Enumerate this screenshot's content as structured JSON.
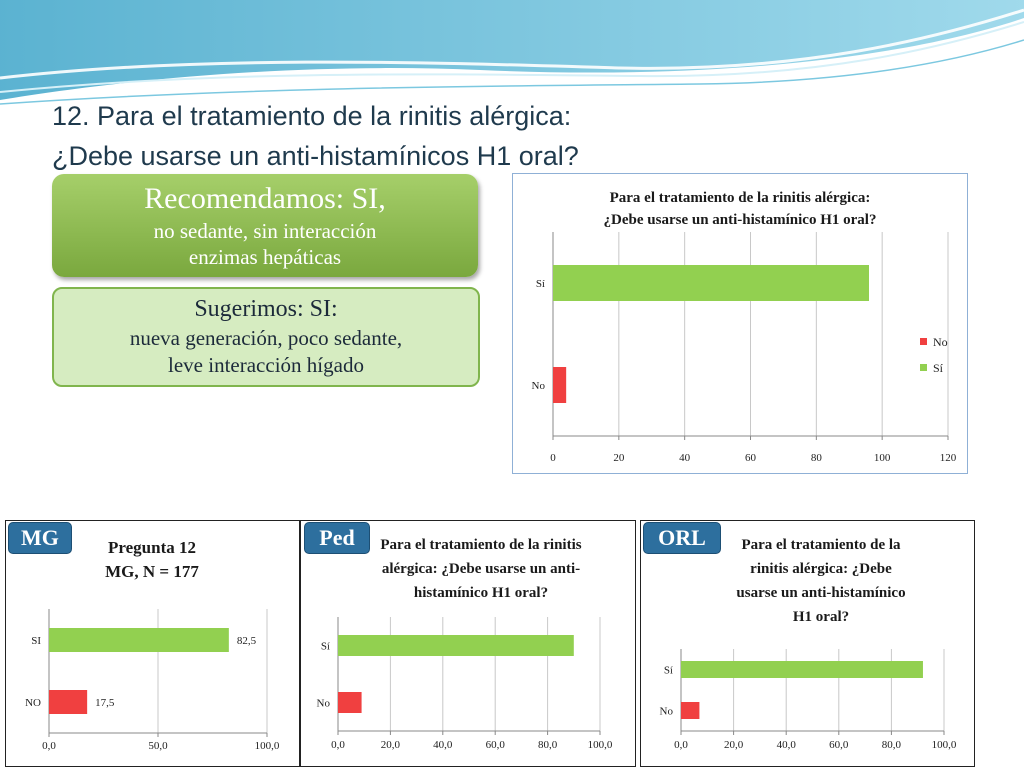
{
  "slide": {
    "title_line1": "12. Para el tratamiento de la rinitis alérgica:",
    "title_line2": "¿Debe usarse un anti-histamínicos H1 oral?",
    "recommend_title": "Recomendamos: SI,",
    "recommend_line2": "no sedante, sin interacción",
    "recommend_line3": "enzimas hepáticas",
    "suggest_line1": "Sugerimos: SI:",
    "suggest_line2": "nueva generación, poco sedante,",
    "suggest_line3": "leve interacción hígado",
    "tag_mg": "MG",
    "tag_ped": "Ped",
    "tag_orl": "ORL"
  },
  "colors": {
    "green": "#92d050",
    "red": "#f04040",
    "accent": "#2d6f9e"
  },
  "chart_data": [
    {
      "type": "bar",
      "orientation": "horizontal",
      "title_lines": [
        "Para el tratamiento de la rinitis alérgica:",
        "¿Debe usarse un anti-histamínico H1 oral?"
      ],
      "categories": [
        "Sí",
        "No"
      ],
      "series": [
        {
          "name": "Sí",
          "category": "Sí",
          "value": 96,
          "color": "#92d050"
        },
        {
          "name": "No",
          "category": "No",
          "value": 4,
          "color": "#f04040"
        }
      ],
      "legend": [
        "No",
        "Sí"
      ],
      "legend_position": "right",
      "xlim": [
        0,
        120
      ],
      "ticks": [
        "0",
        "20",
        "40",
        "60",
        "80",
        "100",
        "120"
      ],
      "grid": true
    },
    {
      "type": "bar",
      "orientation": "horizontal",
      "title_lines": [
        "Pregunta 12",
        "MG, N = 177"
      ],
      "categories": [
        "SI",
        "NO"
      ],
      "values": [
        82.5,
        17.5
      ],
      "data_labels": [
        "82,5",
        "17,5"
      ],
      "xlim": [
        0,
        100
      ],
      "ticks": [
        "0,0",
        "50,0",
        "100,0"
      ],
      "grid": true
    },
    {
      "type": "bar",
      "orientation": "horizontal",
      "title_lines": [
        "Para el tratamiento de la rinitis",
        "alérgica: ¿Debe usarse un anti-",
        "histamínico H1 oral?"
      ],
      "categories": [
        "Sí",
        "No"
      ],
      "values": [
        90,
        9
      ],
      "xlim": [
        0,
        100
      ],
      "ticks": [
        "0,0",
        "20,0",
        "40,0",
        "60,0",
        "80,0",
        "100,0"
      ],
      "grid": true
    },
    {
      "type": "bar",
      "orientation": "horizontal",
      "title_lines": [
        "Para el tratamiento de la",
        "rinitis alérgica: ¿Debe",
        "usarse un anti-histamínico",
        "H1 oral?"
      ],
      "categories": [
        "Sí",
        "No"
      ],
      "values": [
        92,
        7
      ],
      "xlim": [
        0,
        100
      ],
      "ticks": [
        "0,0",
        "20,0",
        "40,0",
        "60,0",
        "80,0",
        "100,0"
      ],
      "grid": true
    }
  ]
}
